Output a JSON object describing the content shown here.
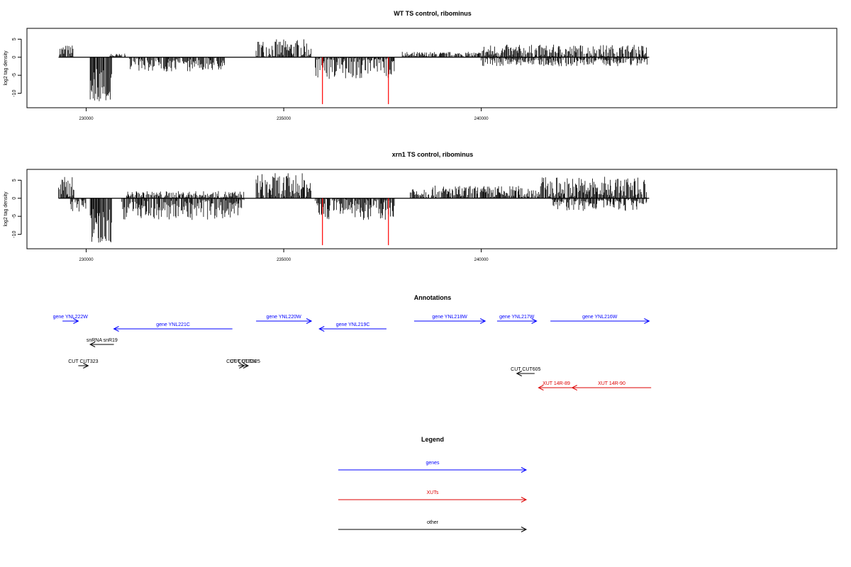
{
  "chart_data": [
    {
      "type": "bar",
      "title": "WT TS control, ribominus",
      "ylabel": "log2 tag density",
      "xlim": [
        228500,
        249000
      ],
      "ylim": [
        -14,
        8
      ],
      "yticks": [
        -10,
        -5,
        0,
        5
      ],
      "xticks": [
        230000,
        235000,
        240000
      ],
      "grid": false,
      "x_extent": [
        229300,
        244250
      ],
      "baseline": 0,
      "series": [
        {
          "strand": "plus",
          "color": "#000000",
          "segments": [
            {
              "x": [
                229300,
                229700
              ],
              "max": 3.5
            },
            {
              "x": [
                230600,
                231000
              ],
              "max": 1
            },
            {
              "x": [
                234300,
                235700
              ],
              "max": 5
            },
            {
              "x": [
                238000,
                240000
              ],
              "max": 1.5
            },
            {
              "x": [
                240000,
                244200
              ],
              "max": 3.5
            }
          ]
        },
        {
          "strand": "minus",
          "color": "#000000",
          "segments": [
            {
              "x": [
                230100,
                230650
              ],
              "min": -12.5
            },
            {
              "x": [
                231100,
                233500
              ],
              "min": -4
            },
            {
              "x": [
                235800,
                237800
              ],
              "min": -6
            },
            {
              "x": [
                240000,
                244200
              ],
              "min": -2.5
            }
          ]
        },
        {
          "name": "",
          "color": "#ff0000",
          "spikes": [
            {
              "x": 235980,
              "y": -13
            },
            {
              "x": 237650,
              "y": -13
            }
          ]
        }
      ]
    },
    {
      "type": "bar",
      "title": "xrn1 TS control, ribominus",
      "ylabel": "log2 tag density",
      "xlim": [
        228500,
        249000
      ],
      "ylim": [
        -14,
        8
      ],
      "yticks": [
        -10,
        -5,
        0,
        5
      ],
      "xticks": [
        230000,
        235000,
        240000
      ],
      "grid": false,
      "x_extent": [
        229300,
        244250
      ],
      "baseline": 0,
      "series": [
        {
          "strand": "plus",
          "color": "#000000",
          "segments": [
            {
              "x": [
                229300,
                229700
              ],
              "max": 6
            },
            {
              "x": [
                231000,
                234000
              ],
              "max": 2
            },
            {
              "x": [
                234300,
                235700
              ],
              "max": 7
            },
            {
              "x": [
                238200,
                241500
              ],
              "max": 3.5
            },
            {
              "x": [
                241500,
                244200
              ],
              "max": 6
            }
          ]
        },
        {
          "strand": "minus",
          "color": "#000000",
          "segments": [
            {
              "x": [
                229600,
                230000
              ],
              "min": -4
            },
            {
              "x": [
                230100,
                230650
              ],
              "min": -12.5
            },
            {
              "x": [
                230900,
                234000
              ],
              "min": -6
            },
            {
              "x": [
                235800,
                237800
              ],
              "min": -6
            },
            {
              "x": [
                241800,
                244200
              ],
              "min": -3.5
            }
          ]
        },
        {
          "name": "",
          "color": "#ff0000",
          "spikes": [
            {
              "x": 235980,
              "y": -13
            },
            {
              "x": 237650,
              "y": -13
            }
          ]
        }
      ]
    }
  ],
  "annotations": {
    "title": "Annotations",
    "features": [
      {
        "label": "gene YNL222W",
        "category": "genes",
        "start": 229400,
        "end": 229800,
        "strand": "+",
        "track": 0
      },
      {
        "label": "gene YNL221C",
        "category": "genes",
        "start": 230700,
        "end": 233700,
        "strand": "-",
        "track": 1
      },
      {
        "label": "gene YNL220W",
        "category": "genes",
        "start": 234300,
        "end": 235700,
        "strand": "+",
        "track": 0
      },
      {
        "label": "gene YNL219C",
        "category": "genes",
        "start": 235900,
        "end": 237600,
        "strand": "-",
        "track": 1
      },
      {
        "label": "gene YNL218W",
        "category": "genes",
        "start": 238300,
        "end": 240100,
        "strand": "+",
        "track": 0
      },
      {
        "label": "gene YNL217W",
        "category": "genes",
        "start": 240400,
        "end": 241400,
        "strand": "+",
        "track": 0
      },
      {
        "label": "gene YNL216W",
        "category": "genes",
        "start": 241750,
        "end": 244250,
        "strand": "+",
        "track": 0
      },
      {
        "label": "snRNA snR19",
        "category": "other",
        "start": 230100,
        "end": 230700,
        "strand": "-",
        "track": 2
      },
      {
        "label": "CUT CUT323",
        "category": "other",
        "start": 229800,
        "end": 230050,
        "strand": "+",
        "track": 3
      },
      {
        "label": "CUT CUT324",
        "category": "other",
        "start": 233850,
        "end": 234000,
        "strand": "+",
        "track": 3
      },
      {
        "label": "CUT CUT325",
        "category": "other",
        "start": 233950,
        "end": 234100,
        "strand": "+",
        "track": 3
      },
      {
        "label": "CUT CUT605",
        "category": "other",
        "start": 240900,
        "end": 241350,
        "strand": "-",
        "track": 4
      },
      {
        "label": "XUT 14R-89",
        "category": "XUTs",
        "start": 241450,
        "end": 242350,
        "strand": "-",
        "track": 5
      },
      {
        "label": "XUT 14R-90",
        "category": "XUTs",
        "start": 242300,
        "end": 244300,
        "strand": "-",
        "track": 5
      }
    ]
  },
  "legend": {
    "title": "Legend",
    "entries": [
      {
        "label": "genes",
        "category": "genes"
      },
      {
        "label": "XUTs",
        "category": "XUTs"
      },
      {
        "label": "other",
        "category": "other"
      }
    ]
  },
  "category_colors": {
    "genes": "#0000ff",
    "XUTs": "#dd0000",
    "other": "#000000"
  }
}
